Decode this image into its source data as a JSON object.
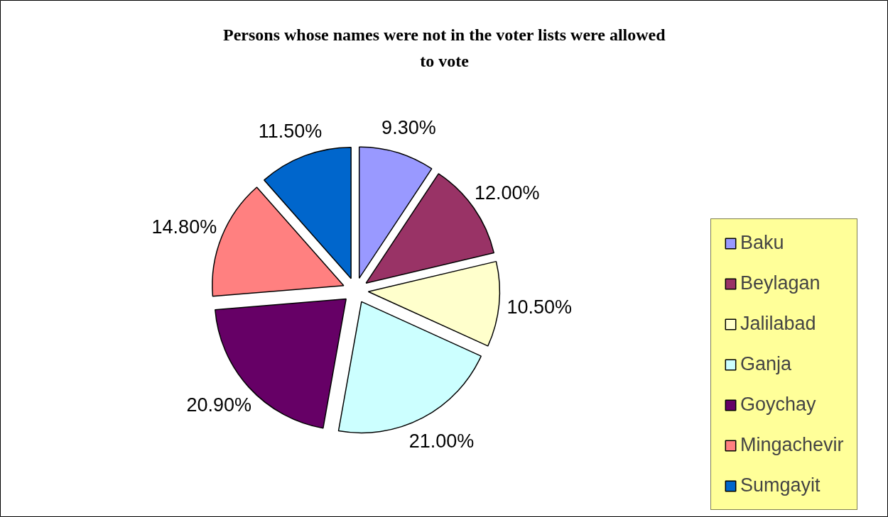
{
  "chart_data": {
    "type": "pie",
    "title": "Persons whose names were not in the voter lists were allowed to vote",
    "categories": [
      "Baku",
      "Beylagan",
      "Jalilabad",
      "Ganja",
      "Goychay",
      "Mingachevir",
      "Sumgayit"
    ],
    "values": [
      9.3,
      12.0,
      10.5,
      21.0,
      20.9,
      14.8,
      11.5
    ],
    "value_labels": [
      "9.30%",
      "12.00%",
      "10.50%",
      "21.00%",
      "20.90%",
      "14.80%",
      "11.50%"
    ],
    "colors": [
      "#9999ff",
      "#993366",
      "#ffffcc",
      "#ccffff",
      "#660066",
      "#ff8080",
      "#0066cc"
    ],
    "legend": "right"
  }
}
